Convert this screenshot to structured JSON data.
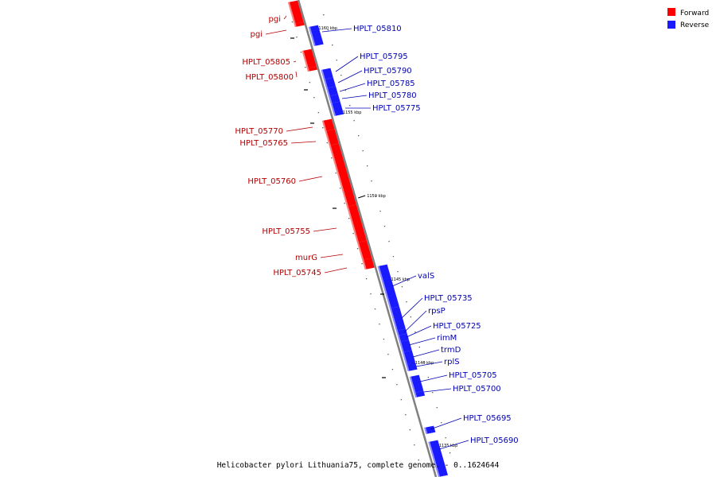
{
  "legend": [
    {
      "label": "Forward",
      "color": "#ff0000"
    },
    {
      "label": "Reverse",
      "color": "#0000ff"
    }
  ],
  "caption": "Helicobacter pylori Lithuania75, complete genome. - 0..1624644",
  "colors": {
    "forward": "#ff0000",
    "forward_label": "#b30000",
    "reverse": "#1a1aff",
    "reverse_label": "#0000b3",
    "backbone": "#808080"
  },
  "kbp_marks": [
    {
      "label": "1160 kbp"
    },
    {
      "label": "1155 kbp"
    },
    {
      "label": "1150 kbp"
    },
    {
      "label": "1145 kbp"
    },
    {
      "label": "1140 kbp"
    },
    {
      "label": "1135 kbp"
    }
  ],
  "forward_genes": [
    {
      "name": "pgi"
    },
    {
      "name": "pgi"
    },
    {
      "name": "HPLT_05805"
    },
    {
      "name": "HPLT_05800"
    },
    {
      "name": "HPLT_05770"
    },
    {
      "name": "HPLT_05765"
    },
    {
      "name": "HPLT_05760"
    },
    {
      "name": "HPLT_05755"
    },
    {
      "name": "murG"
    },
    {
      "name": "HPLT_05745"
    }
  ],
  "reverse_genes": [
    {
      "name": "HPLT_05810"
    },
    {
      "name": "HPLT_05795"
    },
    {
      "name": "HPLT_05790"
    },
    {
      "name": "HPLT_05785"
    },
    {
      "name": "HPLT_05780"
    },
    {
      "name": "HPLT_05775"
    },
    {
      "name": "valS"
    },
    {
      "name": "HPLT_05735"
    },
    {
      "name": "rpsP"
    },
    {
      "name": "HPLT_05725"
    },
    {
      "name": "rimM"
    },
    {
      "name": "trmD"
    },
    {
      "name": "rplS"
    },
    {
      "name": "HPLT_05705"
    },
    {
      "name": "HPLT_05700"
    },
    {
      "name": "HPLT_05695"
    },
    {
      "name": "HPLT_05690"
    }
  ]
}
